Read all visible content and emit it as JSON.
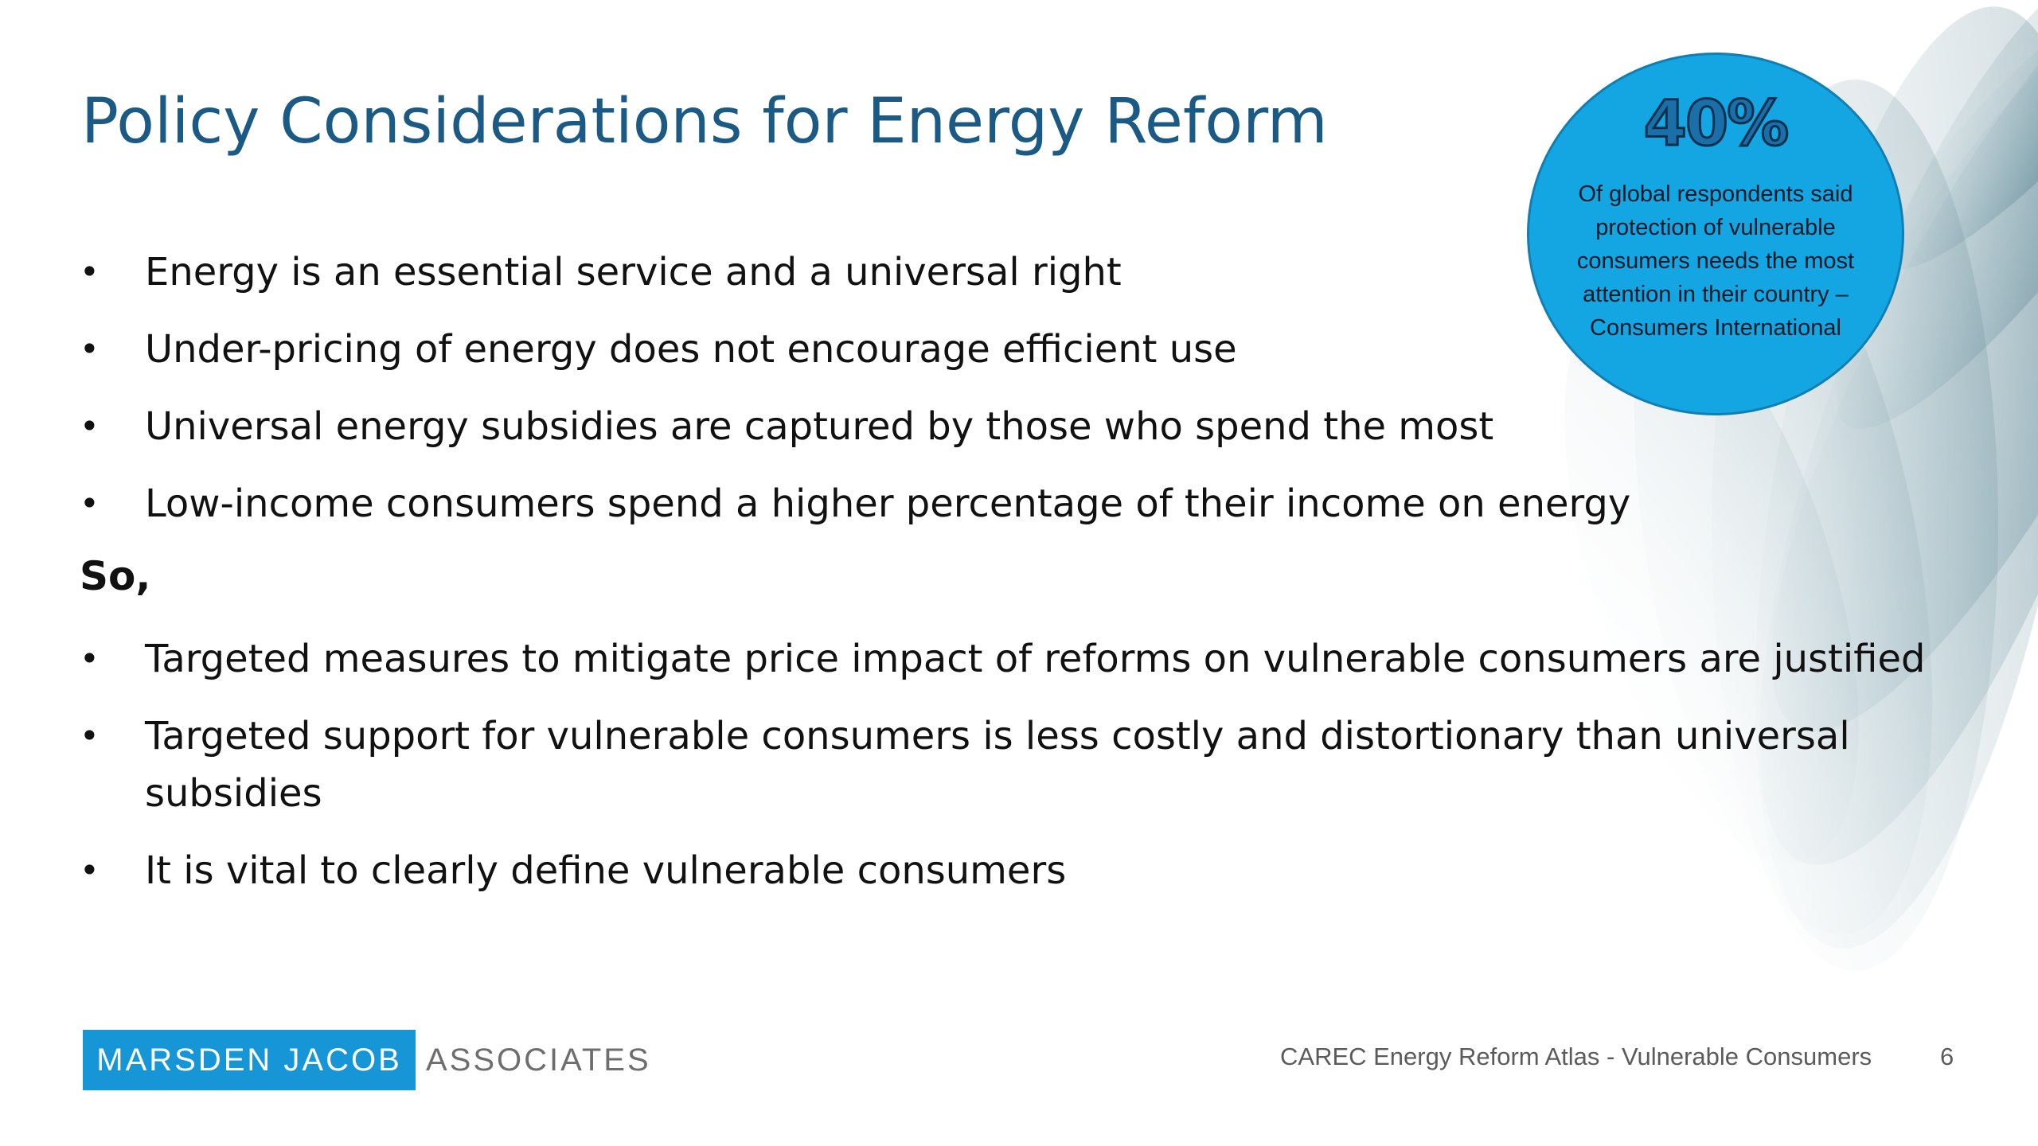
{
  "slide": {
    "title": "Policy Considerations for Energy Reform",
    "bullets_before": [
      "Energy is an essential service and a universal right",
      "Under-pricing of energy does not encourage efficient use",
      "Universal energy subsidies are captured by those who spend the most",
      "Low-income consumers spend a higher percentage of their income on energy"
    ],
    "transition": "So,",
    "bullets_after": [
      "Targeted measures to mitigate price impact of reforms on vulnerable consumers are justified",
      "Targeted support for vulnerable consumers is less costly and distortionary than universal subsidies",
      "It is vital to clearly define vulnerable consumers"
    ],
    "bullet_glyph": "•"
  },
  "callout": {
    "value": "40%",
    "caption": "Of global respondents said protection of vulnerable consumers needs the most attention in their country – Consumers International",
    "fill_color": "#14a5e3"
  },
  "footer": {
    "logo_primary": "MARSDEN JACOB",
    "logo_secondary": "ASSOCIATES",
    "logo_color": "#1696d7",
    "caption": "CAREC Energy Reform Atlas - Vulnerable Consumers",
    "page_number": "6"
  },
  "theme": {
    "title_color": "#1a5a84",
    "decor_color": "#3f6f7f"
  }
}
